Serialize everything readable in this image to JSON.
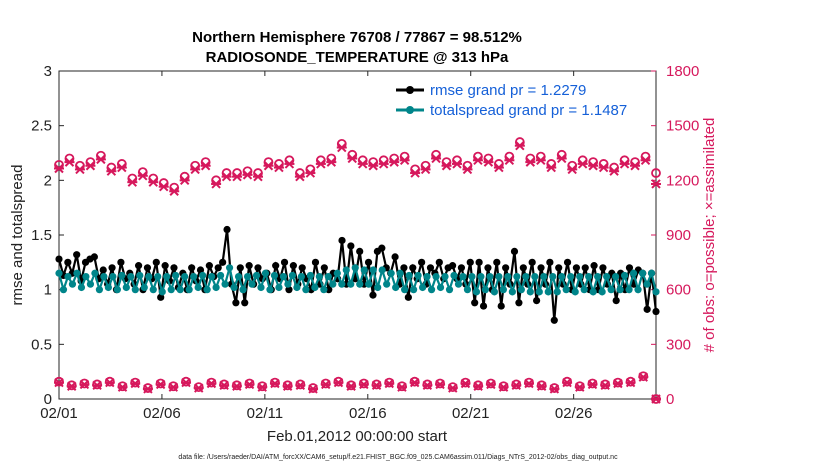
{
  "chart_data": {
    "type": "line",
    "title": "Northern Hemisphere 76708 / 77867 = 98.512%",
    "subtitle": "RADIOSONDE_TEMPERATURE @ 313 hPa",
    "xlabel": "Feb.01,2012 00:00:00 start",
    "ylabel": "rmse and totalspread",
    "ylabel_right": "# of obs: o=possible; ×=assimilated",
    "xlim": [
      1,
      30
    ],
    "ylim": [
      0,
      3
    ],
    "ylim_right": [
      0,
      1800
    ],
    "x_ticks": [
      1,
      6,
      11,
      16,
      21,
      26
    ],
    "x_tick_labels": [
      "02/01",
      "02/06",
      "02/11",
      "02/16",
      "02/21",
      "02/26"
    ],
    "y_ticks": [
      "0",
      "0.5",
      "1",
      "1.5",
      "2",
      "2.5",
      "3"
    ],
    "y_ticks_right": [
      "0",
      "300",
      "600",
      "900",
      "1200",
      "1500",
      "1800"
    ],
    "legend": [
      "rmse grand pr = 1.2279",
      "totalspread grand pr = 1.1487"
    ],
    "footnote": "data file: /Users/raeder/DAI/ATM_forcXX/CAM6_setup/f.e21.FHIST_BGC.f09_025.CAM6assim.011/Diags_NTrS_2012-02/obs_diag_output.nc",
    "series": [
      {
        "name": "rmse",
        "axis": "left",
        "color": "#000000",
        "values": [
          1.28,
          1.13,
          1.25,
          1.15,
          1.32,
          1.08,
          1.25,
          1.28,
          1.3,
          1.1,
          1.18,
          1.05,
          1.2,
          1.0,
          1.25,
          1.1,
          1.15,
          1.05,
          1.22,
          1.0,
          1.2,
          1.1,
          1.25,
          0.93,
          1.22,
          1.08,
          1.2,
          1.02,
          1.15,
          1.0,
          1.2,
          1.08,
          1.18,
          1.0,
          1.22,
          1.12,
          1.2,
          1.25,
          1.55,
          1.05,
          0.88,
          1.2,
          0.88,
          1.22,
          1.05,
          1.2,
          1.1,
          1.15,
          1.0,
          1.22,
          1.1,
          1.25,
          1.0,
          1.22,
          1.05,
          1.2,
          1.1,
          1.0,
          1.25,
          1.05,
          1.2,
          1.0,
          1.15,
          1.1,
          1.45,
          1.05,
          1.4,
          1.1,
          1.35,
          1.05,
          1.25,
          0.95,
          1.35,
          1.38,
          1.2,
          1.15,
          1.3,
          1.05,
          1.2,
          0.93,
          1.2,
          1.1,
          1.25,
          1.05,
          1.2,
          1.15,
          1.25,
          1.1,
          1.2,
          1.22,
          1.1,
          1.2,
          1.05,
          1.25,
          0.88,
          1.25,
          0.85,
          1.2,
          1.0,
          1.25,
          0.85,
          1.2,
          1.05,
          1.35,
          0.88,
          1.2,
          1.05,
          1.25,
          0.9,
          1.2,
          1.05,
          1.25,
          0.72,
          1.2,
          1.05,
          1.25,
          1.0,
          1.2,
          1.05,
          1.2,
          1.0,
          1.22,
          1.0,
          1.2,
          1.05,
          1.15,
          0.9,
          1.15,
          1.0,
          1.2,
          1.05,
          1.18,
          1.15,
          0.82,
          1.15,
          0.8
        ]
      },
      {
        "name": "totalspread",
        "axis": "left",
        "color": "#00858a",
        "values": [
          1.15,
          1.0,
          1.12,
          1.05,
          1.15,
          1.02,
          1.12,
          1.05,
          1.15,
          1.0,
          1.12,
          1.02,
          1.12,
          1.0,
          1.13,
          1.02,
          1.12,
          1.0,
          1.13,
          1.02,
          1.12,
          1.0,
          1.12,
          0.98,
          1.12,
          1.0,
          1.13,
          1.0,
          1.12,
          1.0,
          1.12,
          1.02,
          1.13,
          1.0,
          1.12,
          1.02,
          1.13,
          1.05,
          1.2,
          1.02,
          1.12,
          1.0,
          1.12,
          1.05,
          1.13,
          1.02,
          1.15,
          1.0,
          1.13,
          1.02,
          1.12,
          1.05,
          1.13,
          1.02,
          1.12,
          1.0,
          1.13,
          1.02,
          1.12,
          1.0,
          1.12,
          1.05,
          1.15,
          1.05,
          1.18,
          1.05,
          1.2,
          1.05,
          1.18,
          1.05,
          1.18,
          1.02,
          1.18,
          1.05,
          1.15,
          1.02,
          1.15,
          1.0,
          1.13,
          1.0,
          1.13,
          1.02,
          1.12,
          1.0,
          1.12,
          1.02,
          1.12,
          1.0,
          1.13,
          1.05,
          1.12,
          1.0,
          1.12,
          0.98,
          1.12,
          1.0,
          1.12,
          0.98,
          1.12,
          1.0,
          1.12,
          0.98,
          1.12,
          1.0,
          1.12,
          0.98,
          1.12,
          0.98,
          1.12,
          0.98,
          1.12,
          0.98,
          1.12,
          1.0,
          1.12,
          0.98,
          1.12,
          1.0,
          1.12,
          0.98,
          1.12,
          0.98,
          1.12,
          1.0,
          1.12,
          1.0,
          1.13,
          1.0,
          1.15,
          1.0,
          1.15,
          1.05,
          1.15,
          0.98
        ]
      },
      {
        "name": "possible_top",
        "axis": "right",
        "marker": "o",
        "color": "#d6185c",
        "values": [
          1285,
          1320,
          1280,
          1300,
          1335,
          1270,
          1290,
          1210,
          1245,
          1210,
          1185,
          1160,
          1220,
          1280,
          1300,
          1200,
          1240,
          1240,
          1250,
          1240,
          1300,
          1290,
          1310,
          1240,
          1260,
          1310,
          1320,
          1400,
          1340,
          1310,
          1300,
          1310,
          1320,
          1330,
          1260,
          1280,
          1340,
          1300,
          1310,
          1280,
          1330,
          1320,
          1290,
          1330,
          1410,
          1320,
          1330,
          1290,
          1340,
          1280,
          1310,
          1300,
          1290,
          1270,
          1310,
          1300,
          1330,
          1240
        ]
      },
      {
        "name": "assimilated_top",
        "axis": "right",
        "marker": "x",
        "color": "#d6185c",
        "values": [
          1265,
          1300,
          1260,
          1280,
          1315,
          1250,
          1270,
          1190,
          1225,
          1190,
          1165,
          1140,
          1200,
          1260,
          1280,
          1180,
          1220,
          1220,
          1230,
          1220,
          1280,
          1270,
          1290,
          1220,
          1240,
          1290,
          1300,
          1380,
          1320,
          1290,
          1280,
          1290,
          1300,
          1310,
          1240,
          1260,
          1320,
          1280,
          1290,
          1260,
          1310,
          1300,
          1270,
          1310,
          1390,
          1300,
          1310,
          1270,
          1320,
          1260,
          1290,
          1280,
          1270,
          1250,
          1290,
          1280,
          1310,
          1180
        ]
      },
      {
        "name": "possible_bottom",
        "axis": "right",
        "marker": "o",
        "color": "#d6185c",
        "values": [
          95,
          75,
          85,
          80,
          95,
          70,
          90,
          60,
          85,
          70,
          95,
          65,
          90,
          80,
          75,
          85,
          70,
          90,
          75,
          80,
          60,
          85,
          95,
          75,
          85,
          80,
          90,
          70,
          95,
          80,
          85,
          65,
          90,
          75,
          85,
          70,
          80,
          90,
          75,
          60,
          95,
          70,
          85,
          80,
          90,
          95,
          125,
          0
        ]
      },
      {
        "name": "assimilated_bottom",
        "axis": "right",
        "marker": "x",
        "color": "#d6185c",
        "values": [
          90,
          70,
          80,
          75,
          90,
          65,
          85,
          55,
          80,
          65,
          90,
          60,
          85,
          75,
          70,
          80,
          65,
          85,
          70,
          75,
          55,
          80,
          90,
          70,
          80,
          75,
          85,
          65,
          90,
          75,
          80,
          60,
          85,
          70,
          80,
          65,
          75,
          85,
          70,
          55,
          90,
          65,
          80,
          75,
          85,
          90,
          120,
          0
        ]
      }
    ]
  }
}
